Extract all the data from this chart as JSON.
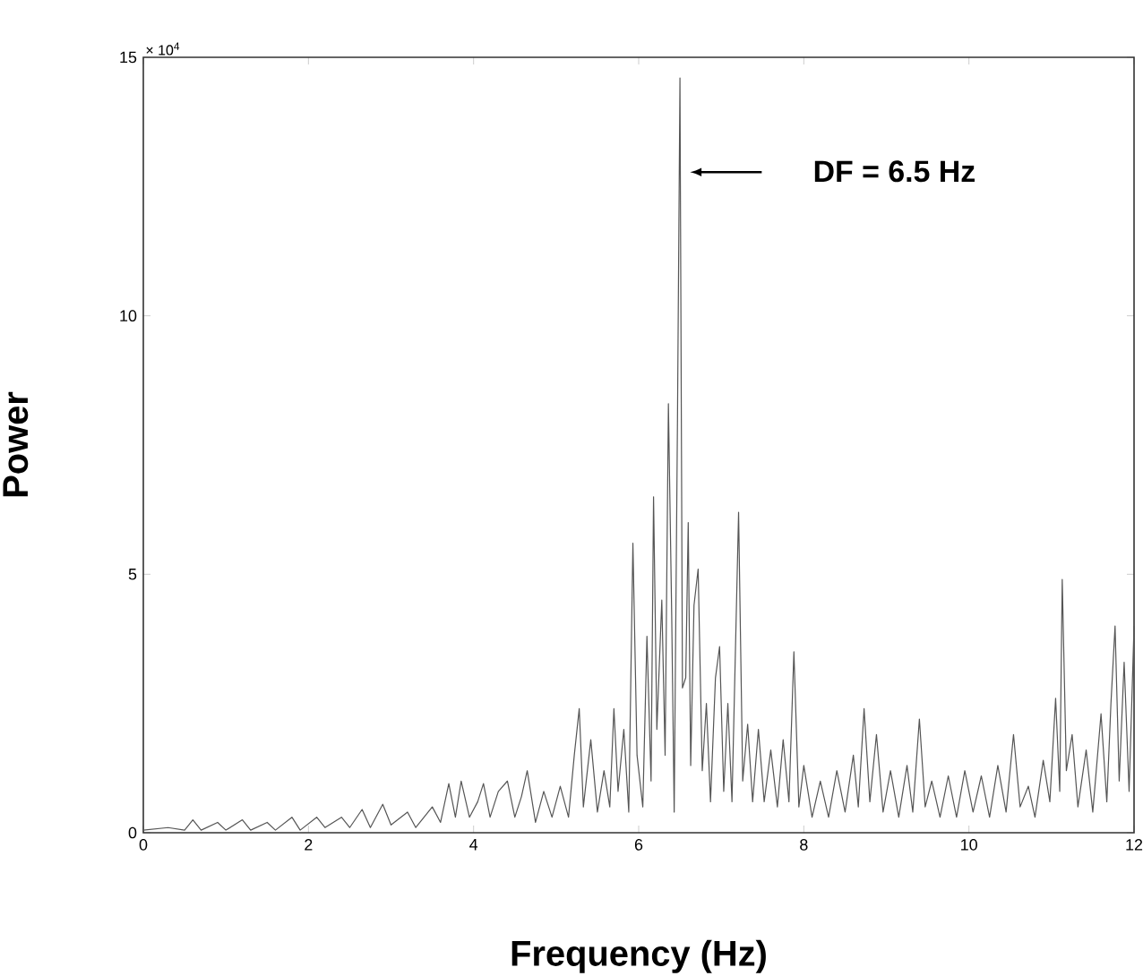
{
  "chart_data": {
    "type": "line",
    "xlabel": "Frequency (Hz)",
    "ylabel": "Power",
    "annotations": [
      "× 10$^{4}$",
      "DF = 6.5 Hz"
    ],
    "xlim": [
      0,
      12
    ],
    "ylim": [
      0,
      15
    ],
    "xticks": [
      0,
      2,
      4,
      6,
      8,
      10,
      12
    ],
    "yticks": [
      0,
      5,
      10,
      15
    ],
    "grid": false,
    "series": [
      {
        "color": "#555555",
        "x": [
          0,
          0.3,
          0.5,
          0.6,
          0.7,
          0.9,
          1.0,
          1.2,
          1.3,
          1.5,
          1.6,
          1.8,
          1.9,
          2.1,
          2.2,
          2.4,
          2.5,
          2.65,
          2.75,
          2.9,
          3.0,
          3.2,
          3.3,
          3.5,
          3.6,
          3.7,
          3.78,
          3.85,
          3.95,
          4.05,
          4.12,
          4.2,
          4.3,
          4.41,
          4.5,
          4.58,
          4.65,
          4.75,
          4.85,
          4.95,
          5.05,
          5.15,
          5.22,
          5.28,
          5.33,
          5.42,
          5.5,
          5.58,
          5.65,
          5.7,
          5.75,
          5.82,
          5.88,
          5.93,
          5.98,
          6.05,
          6.1,
          6.15,
          6.18,
          6.22,
          6.28,
          6.32,
          6.36,
          6.4,
          6.43,
          6.47,
          6.5,
          6.53,
          6.57,
          6.6,
          6.63,
          6.67,
          6.72,
          6.77,
          6.82,
          6.87,
          6.93,
          6.98,
          7.03,
          7.08,
          7.13,
          7.21,
          7.26,
          7.32,
          7.38,
          7.45,
          7.52,
          7.6,
          7.68,
          7.75,
          7.82,
          7.88,
          7.94,
          8.0,
          8.1,
          8.2,
          8.3,
          8.4,
          8.5,
          8.6,
          8.66,
          8.73,
          8.8,
          8.88,
          8.96,
          9.05,
          9.15,
          9.25,
          9.32,
          9.4,
          9.47,
          9.55,
          9.65,
          9.75,
          9.85,
          9.95,
          10.05,
          10.15,
          10.25,
          10.35,
          10.45,
          10.54,
          10.62,
          10.72,
          10.8,
          10.9,
          10.98,
          11.05,
          11.1,
          11.13,
          11.18,
          11.25,
          11.32,
          11.42,
          11.5,
          11.6,
          11.67,
          11.72,
          11.77,
          11.82,
          11.88,
          11.94,
          12.0
        ],
        "values": [
          0.05,
          0.1,
          0.05,
          0.25,
          0.05,
          0.2,
          0.05,
          0.25,
          0.05,
          0.2,
          0.05,
          0.3,
          0.05,
          0.3,
          0.1,
          0.3,
          0.1,
          0.45,
          0.1,
          0.55,
          0.15,
          0.4,
          0.1,
          0.5,
          0.2,
          0.95,
          0.3,
          1.0,
          0.3,
          0.6,
          0.95,
          0.3,
          0.8,
          1.0,
          0.3,
          0.7,
          1.2,
          0.2,
          0.8,
          0.3,
          0.9,
          0.3,
          1.5,
          2.4,
          0.5,
          1.8,
          0.4,
          1.2,
          0.5,
          2.4,
          0.8,
          2.0,
          0.4,
          5.6,
          1.5,
          0.5,
          3.8,
          1.0,
          6.5,
          2.0,
          4.5,
          1.5,
          8.3,
          4.2,
          0.4,
          8.0,
          14.6,
          2.8,
          3.0,
          6.0,
          1.3,
          4.4,
          5.1,
          1.2,
          2.5,
          0.6,
          3.0,
          3.6,
          0.8,
          2.5,
          0.6,
          6.2,
          1.0,
          2.1,
          0.6,
          2.0,
          0.6,
          1.6,
          0.5,
          1.8,
          0.6,
          3.5,
          0.5,
          1.3,
          0.3,
          1.0,
          0.3,
          1.2,
          0.4,
          1.5,
          0.5,
          2.4,
          0.6,
          1.9,
          0.4,
          1.2,
          0.3,
          1.3,
          0.4,
          2.2,
          0.5,
          1.0,
          0.3,
          1.1,
          0.3,
          1.2,
          0.4,
          1.1,
          0.3,
          1.3,
          0.4,
          1.9,
          0.5,
          0.9,
          0.3,
          1.4,
          0.6,
          2.6,
          0.8,
          4.9,
          1.2,
          1.9,
          0.5,
          1.6,
          0.4,
          2.3,
          0.6,
          2.5,
          4.0,
          1.0,
          3.3,
          0.8,
          4.0
        ]
      }
    ]
  }
}
